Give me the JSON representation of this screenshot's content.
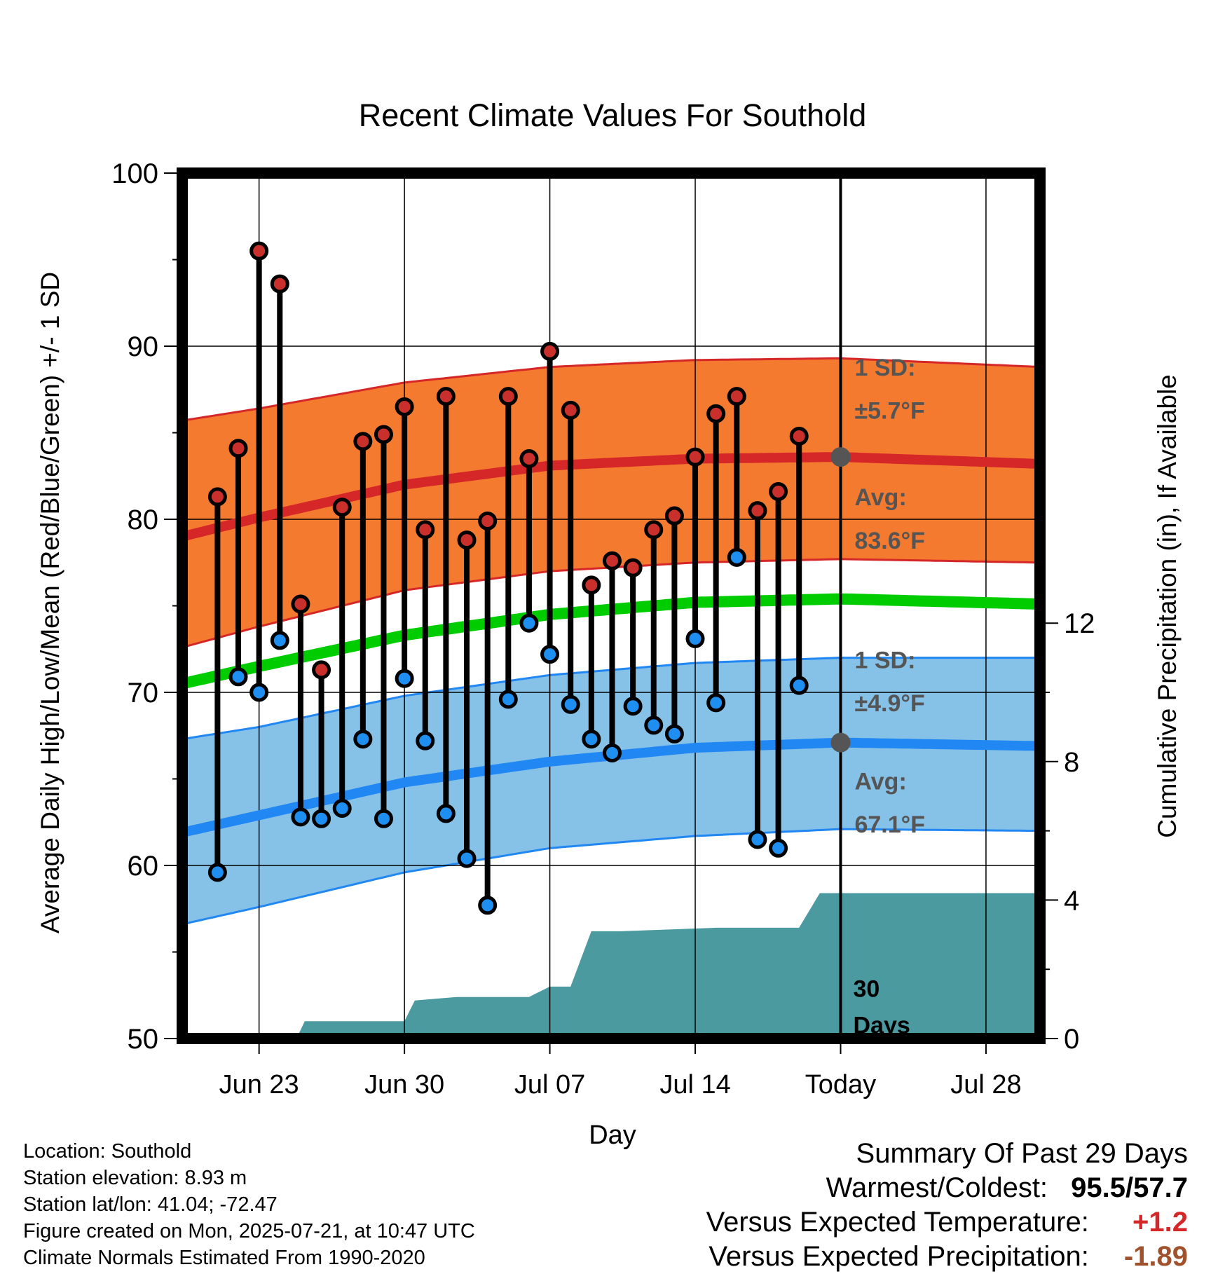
{
  "chart_data": {
    "type": "line",
    "title": "Recent Climate Values For Southold",
    "xlabel": "Day",
    "ylabel": "Average Daily High/Low/Mean (Red/Blue/Green) +/- 1 SD",
    "y2label": "Cumulative Precipitation (in), If Available",
    "ylim": [
      50,
      100
    ],
    "y2lim": [
      0,
      25
    ],
    "y_ticks": [
      "50",
      "60",
      "70",
      "80",
      "90",
      "100"
    ],
    "y2_ticks": [
      "0",
      "4",
      "8",
      "12"
    ],
    "x_tick_labels": [
      "Jun 23",
      "Jun 30",
      "Jul 07",
      "Jul 14",
      "Today",
      "Jul 28"
    ],
    "x_tick_days": [
      -28,
      -21,
      -14,
      -7,
      0,
      7
    ],
    "x_range_days": [
      -31.7,
      9.6
    ],
    "grid": true,
    "today_label": "30\nDays",
    "days": [
      -30,
      -29,
      -28,
      -27,
      -26,
      -25,
      -24,
      -23,
      -22,
      -21,
      -20,
      -19,
      -18,
      -17,
      -16,
      -15,
      -14,
      -13,
      -12,
      -11,
      -10,
      -9,
      -8,
      -7,
      -6,
      -5,
      -4,
      -3,
      -2,
      -1
    ],
    "highs": [
      81.3,
      84.1,
      95.5,
      93.6,
      75.1,
      71.3,
      80.7,
      84.5,
      84.9,
      86.5,
      79.4,
      87.1,
      78.8,
      79.9,
      87.1,
      83.5,
      89.7,
      86.3,
      76.2,
      77.6,
      77.2,
      79.4,
      80.2,
      83.6,
      86.1,
      87.1,
      80.5,
      81.6,
      84.8,
      null
    ],
    "lows": [
      59.6,
      70.9,
      70.0,
      73.0,
      62.8,
      62.7,
      63.3,
      67.3,
      62.7,
      70.8,
      67.2,
      63.0,
      60.4,
      57.7,
      69.6,
      74.0,
      72.2,
      69.3,
      67.3,
      66.5,
      69.2,
      68.1,
      67.6,
      73.1,
      69.4,
      77.8,
      61.5,
      61.0,
      70.4,
      null
    ],
    "normal_high": {
      "x": [
        -31.7,
        -28,
        -21,
        -14,
        -7,
        0,
        9.6
      ],
      "avg": [
        79.0,
        80.1,
        82.0,
        83.1,
        83.5,
        83.6,
        83.2
      ],
      "upper": [
        85.7,
        86.4,
        87.9,
        88.8,
        89.2,
        89.3,
        88.8
      ],
      "lower": [
        72.6,
        73.8,
        75.9,
        77.0,
        77.5,
        77.7,
        77.5
      ],
      "sd_label": "1 SD:",
      "sd_value": "±5.7°F",
      "avg_label": "Avg:",
      "avg_value": "83.6°F"
    },
    "normal_low": {
      "x": [
        -31.7,
        -28,
        -21,
        -14,
        -7,
        0,
        9.6
      ],
      "avg": [
        61.9,
        62.9,
        64.8,
        66.0,
        66.8,
        67.1,
        66.9
      ],
      "upper": [
        67.3,
        68.0,
        69.8,
        71.0,
        71.7,
        72.0,
        72.0
      ],
      "lower": [
        56.6,
        57.6,
        59.6,
        61.0,
        61.7,
        62.1,
        62.0
      ],
      "sd_label": "1 SD:",
      "sd_value": "±4.9°F",
      "avg_label": "Avg:",
      "avg_value": "67.1°F"
    },
    "normal_mean": {
      "x": [
        -31.7,
        -28,
        -21,
        -14,
        -7,
        0,
        9.6
      ],
      "avg": [
        70.5,
        71.5,
        73.3,
        74.5,
        75.2,
        75.4,
        75.1
      ]
    },
    "precip": {
      "x": [
        -31.7,
        -26.2,
        -25.8,
        -21.0,
        -20.5,
        -18.5,
        -15.0,
        -14.0,
        -13.0,
        -12.0,
        -10.6,
        -6.0,
        -2.0,
        -1.0,
        9.6
      ],
      "y": [
        0,
        0,
        0.5,
        0.5,
        1.1,
        1.2,
        1.2,
        1.5,
        1.5,
        3.1,
        3.1,
        3.2,
        3.2,
        4.2,
        4.2
      ]
    },
    "colors": {
      "high_band": "#f47a30",
      "high_line": "#d62728",
      "low_band": "#86c1e8",
      "low_line": "#2187f3",
      "mean_line": "#00cc00",
      "precip": "#4a9aa0",
      "high_dot": "#c9302c",
      "low_dot": "#1f8ef1",
      "marker_gray": "#555555"
    }
  },
  "footer": {
    "location": "Location: Southold",
    "elevation": "Station elevation: 8.93 m",
    "latlon": "Station lat/lon: 41.04; -72.47",
    "created": "Figure created on Mon, 2025-07-21, at 10:47 UTC",
    "normals": "Climate Normals Estimated From 1990-2020"
  },
  "summary": {
    "heading": "Summary Of Past 29 Days",
    "warm_cold_label": "Warmest/Coldest:",
    "warm_cold_value": "95.5/57.7",
    "temp_label": "Versus Expected Temperature:",
    "temp_value": "+1.2",
    "precip_label": "Versus Expected Precipitation:",
    "precip_value": "-1.89",
    "temp_color": "#d62728",
    "precip_color": "#a0522d"
  }
}
